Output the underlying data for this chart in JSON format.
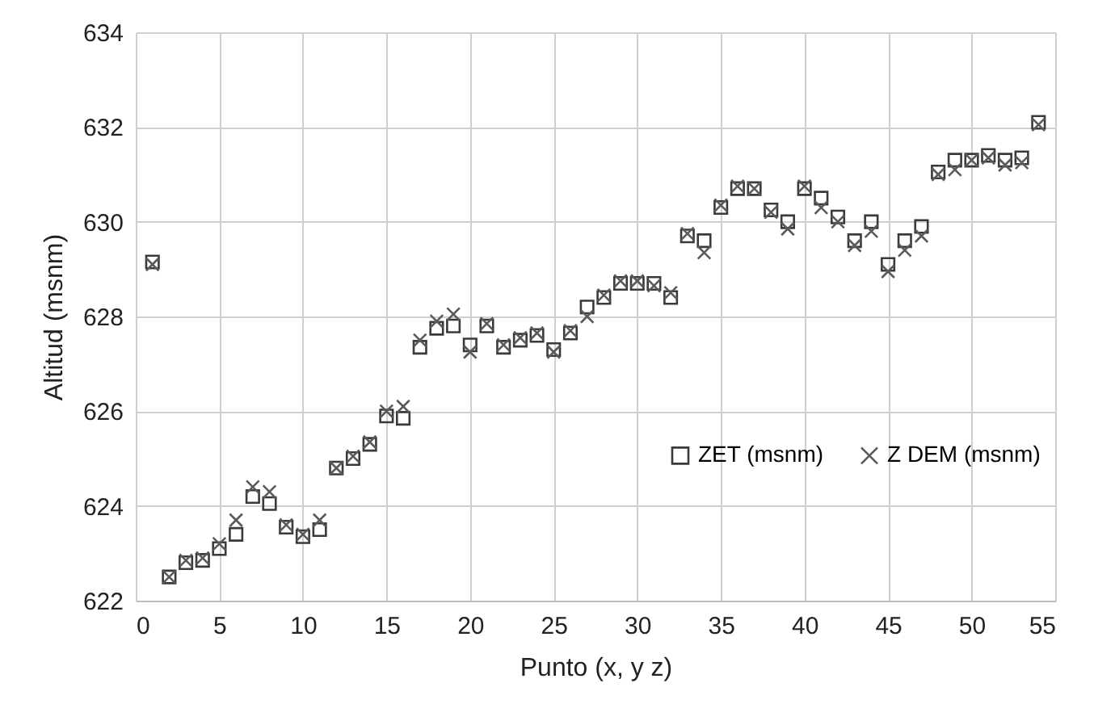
{
  "chart_data": {
    "type": "scatter",
    "xlabel": "Punto (x, y z)",
    "ylabel": "Altitud (msnm)",
    "x": [
      1,
      2,
      3,
      4,
      5,
      6,
      7,
      8,
      9,
      10,
      11,
      12,
      13,
      14,
      15,
      16,
      17,
      18,
      19,
      20,
      21,
      22,
      23,
      24,
      25,
      26,
      27,
      28,
      29,
      30,
      31,
      32,
      33,
      34,
      35,
      36,
      37,
      38,
      39,
      40,
      41,
      42,
      43,
      44,
      45,
      46,
      47,
      48,
      49,
      50,
      51,
      52,
      53,
      54
    ],
    "series": [
      {
        "name": "ZET (msnm)",
        "color": "#3a3a3a",
        "marker": "square",
        "values": [
          629.15,
          622.5,
          622.8,
          622.85,
          623.1,
          623.4,
          624.2,
          624.05,
          623.55,
          623.35,
          623.5,
          624.8,
          625.0,
          625.3,
          625.9,
          625.85,
          627.35,
          627.75,
          627.8,
          627.4,
          627.8,
          627.35,
          627.5,
          627.6,
          627.3,
          627.65,
          628.2,
          628.4,
          628.7,
          628.7,
          628.7,
          628.4,
          629.7,
          629.6,
          630.3,
          630.7,
          630.7,
          630.25,
          630.0,
          630.7,
          630.5,
          630.1,
          629.6,
          630.0,
          629.1,
          629.6,
          629.9,
          631.05,
          631.3,
          631.3,
          631.4,
          631.3,
          631.35,
          632.1
        ]
      },
      {
        "name": "Z DEM (msnm)",
        "color": "#5a5a5a",
        "marker": "cross",
        "values": [
          629.1,
          622.5,
          622.85,
          622.9,
          623.2,
          623.7,
          624.4,
          624.3,
          623.6,
          623.4,
          623.7,
          624.8,
          625.05,
          625.35,
          626.0,
          626.1,
          627.5,
          627.9,
          628.05,
          627.25,
          627.85,
          627.4,
          627.55,
          627.65,
          627.25,
          627.7,
          628.0,
          628.45,
          628.75,
          628.75,
          628.65,
          628.5,
          629.75,
          629.35,
          630.35,
          630.75,
          630.7,
          630.2,
          629.85,
          630.75,
          630.3,
          630.0,
          629.5,
          629.8,
          628.95,
          629.4,
          629.7,
          631.0,
          631.1,
          631.3,
          631.35,
          631.2,
          631.25,
          632.05
        ]
      }
    ],
    "xlim": [
      0,
      55
    ],
    "xticks": [
      0,
      5,
      10,
      15,
      20,
      25,
      30,
      35,
      40,
      45,
      50,
      55
    ],
    "ylim": [
      622,
      634
    ],
    "yticks": [
      622,
      624,
      626,
      628,
      630,
      632,
      634
    ],
    "grid": true,
    "legend": "bottom right"
  }
}
